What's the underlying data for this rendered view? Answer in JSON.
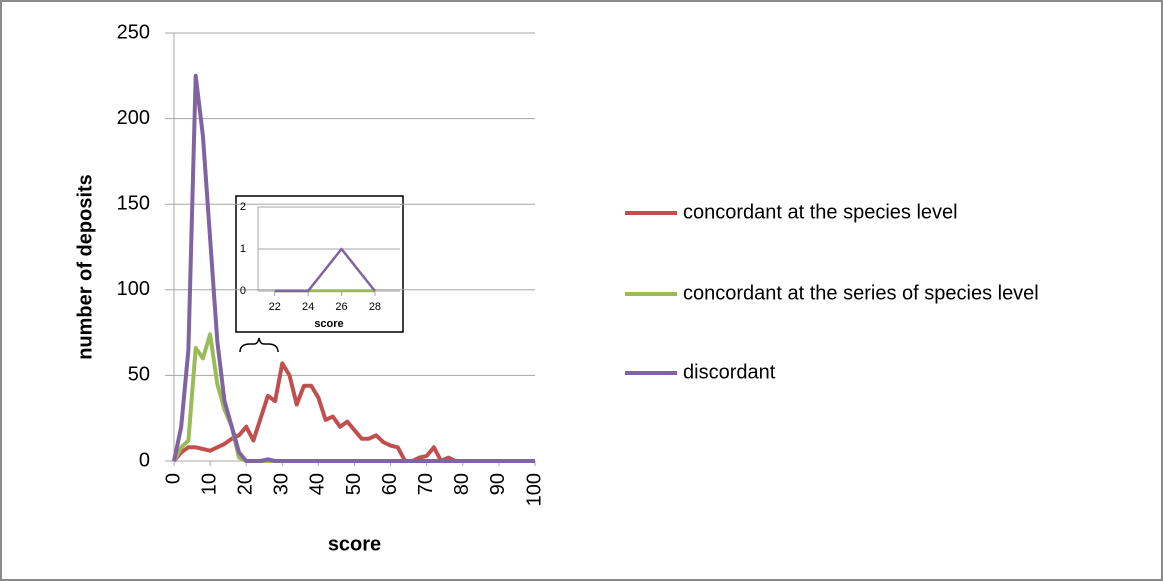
{
  "chart_data": [
    {
      "type": "line",
      "xlabel": "score",
      "ylabel": "number of deposits",
      "x": [
        0,
        2,
        4,
        6,
        8,
        10,
        12,
        14,
        16,
        18,
        20,
        22,
        24,
        26,
        28,
        30,
        32,
        34,
        36,
        38,
        40,
        42,
        44,
        46,
        48,
        50,
        52,
        54,
        56,
        58,
        60,
        62,
        64,
        66,
        68,
        70,
        72,
        74,
        76,
        78,
        80,
        82,
        84,
        86,
        88,
        90,
        92,
        94,
        96,
        98,
        100
      ],
      "series": [
        {
          "name": "concordant at the species level",
          "color": "#c0504d",
          "values": [
            0,
            5,
            8,
            8,
            7,
            6,
            8,
            10,
            13,
            15,
            20,
            12,
            25,
            38,
            35,
            57,
            50,
            33,
            44,
            44,
            37,
            24,
            26,
            20,
            23,
            18,
            13,
            13,
            15,
            11,
            9,
            8,
            0,
            0,
            2,
            3,
            8,
            0,
            2,
            0,
            0,
            0,
            0,
            0,
            0,
            0,
            0,
            0,
            0,
            0,
            0
          ]
        },
        {
          "name": "concordant at the series of species level",
          "color": "#9bbb59",
          "values": [
            0,
            8,
            12,
            66,
            60,
            74,
            45,
            30,
            20,
            2,
            0,
            0,
            0,
            0,
            0,
            0,
            0,
            0,
            0,
            0,
            0,
            0,
            0,
            0,
            0,
            0,
            0,
            0,
            0,
            0,
            0,
            0,
            0,
            0,
            0,
            0,
            0,
            0,
            0,
            0,
            0,
            0,
            0,
            0,
            0,
            0,
            0,
            0,
            0,
            0,
            0
          ]
        },
        {
          "name": "discordant",
          "color": "#8064a2",
          "values": [
            0,
            20,
            65,
            225,
            190,
            130,
            70,
            35,
            20,
            5,
            0,
            0,
            0,
            1,
            0,
            0,
            0,
            0,
            0,
            0,
            0,
            0,
            0,
            0,
            0,
            0,
            0,
            0,
            0,
            0,
            0,
            0,
            0,
            0,
            0,
            0,
            0,
            0,
            0,
            0,
            0,
            0,
            0,
            0,
            0,
            0,
            0,
            0,
            0,
            0,
            0
          ]
        }
      ],
      "xlim": [
        0,
        100
      ],
      "xticks": [
        0,
        10,
        20,
        30,
        40,
        50,
        60,
        70,
        80,
        90,
        100
      ],
      "ylim": [
        0,
        250
      ],
      "yticks": [
        0,
        50,
        100,
        150,
        200,
        250
      ],
      "grid": true,
      "legend": "right"
    },
    {
      "type": "line",
      "xlabel": "score",
      "x": [
        22,
        24,
        26,
        28
      ],
      "series": [
        {
          "color": "#9bbb59",
          "values": [
            0,
            0,
            0,
            0
          ]
        },
        {
          "color": "#8064a2",
          "values": [
            0,
            0,
            1,
            0
          ]
        }
      ],
      "xlim": [
        21,
        29.5
      ],
      "xticks": [
        22,
        24,
        26,
        28
      ],
      "ylim": [
        0,
        2
      ],
      "yticks": [
        0,
        1,
        2
      ],
      "grid": true
    }
  ]
}
